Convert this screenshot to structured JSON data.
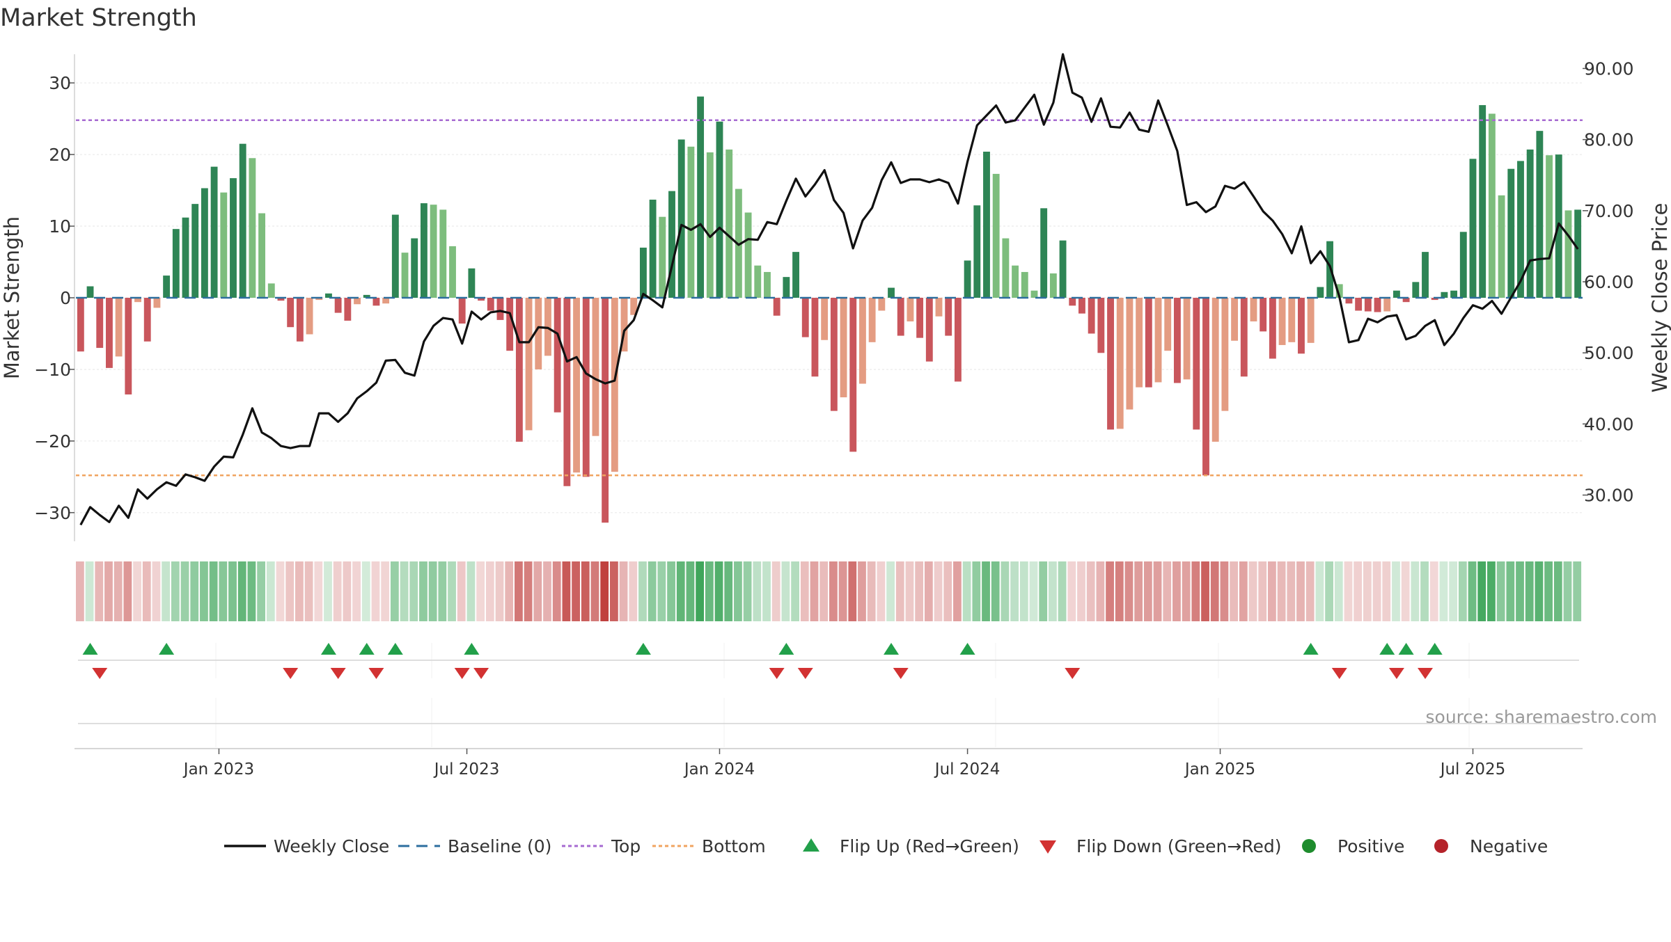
{
  "chart_data": {
    "type": "bar",
    "title": "Market Strength",
    "ylabel_left": "Market Strength",
    "ylabel_right": "Weekly Close Price",
    "source": "source: sharemaestro.com",
    "left_axis": {
      "range": [
        -34,
        34
      ],
      "ticks": [
        30,
        20,
        10,
        0,
        -10,
        -20,
        -30
      ],
      "tick_labels": [
        "30",
        "20",
        "10",
        "0",
        "−10",
        "−20",
        "−30"
      ]
    },
    "right_axis": {
      "range": [
        23.5,
        92
      ],
      "ticks": [
        90,
        80,
        70,
        60,
        50,
        40,
        30
      ],
      "tick_labels": [
        "90.00",
        "80.00",
        "70.00",
        "60.00",
        "50.00",
        "40.00",
        "30.00"
      ]
    },
    "x_axis": {
      "ticks": [
        15.0,
        41.0,
        67.5,
        93.5,
        120.0,
        146.5
      ],
      "tick_labels": [
        "Jan 2023",
        "Jul 2023",
        "Jan 2024",
        "Jul 2024",
        "Jan 2025",
        "Jul 2025"
      ]
    },
    "top_level": 24.8,
    "bottom_level": -24.8,
    "market_strength": [
      -7.5,
      1.6,
      -7,
      -9.8,
      -8.2,
      -13.5,
      -0.6,
      -6.1,
      -1.4,
      3.1,
      9.6,
      11.2,
      13.1,
      15.3,
      18.3,
      14.7,
      16.7,
      21.5,
      19.5,
      11.8,
      2.0,
      -0.4,
      -4.1,
      -6.1,
      -5.1,
      -0.3,
      0.6,
      -2.1,
      -3.2,
      -0.9,
      0.4,
      -1.1,
      -0.8,
      11.6,
      6.3,
      8.3,
      13.2,
      13.0,
      12.3,
      7.2,
      -3.6,
      4.1,
      -0.4,
      -1.8,
      -3.1,
      -7.4,
      -20.1,
      -18.5,
      -10.0,
      -8.1,
      -16.0,
      -26.3,
      -24.4,
      -25.0,
      -19.3,
      -31.4,
      -24.3,
      -7.5,
      -2.4,
      7.0,
      13.7,
      11.3,
      14.9,
      22.1,
      21.1,
      28.1,
      20.3,
      24.6,
      20.7,
      15.2,
      11.9,
      4.5,
      3.6,
      -2.5,
      2.9,
      6.4,
      -5.5,
      -11.0,
      -5.9,
      -15.8,
      -13.9,
      -21.5,
      -12.0,
      -6.2,
      -1.8,
      1.4,
      -5.3,
      -3.3,
      -5.6,
      -8.9,
      -2.6,
      -5.3,
      -11.7,
      5.2,
      12.9,
      20.4,
      17.3,
      8.3,
      4.5,
      3.6,
      1.0,
      12.5,
      3.4,
      8.0,
      -1.1,
      -2.2,
      -5.0,
      -7.7,
      -18.4,
      -18.3,
      -15.6,
      -12.5,
      -12.5,
      -11.8,
      -7.4,
      -11.9,
      -11.4,
      -18.4,
      -24.8,
      -20.1,
      -15.8,
      -6.0,
      -11.0,
      -3.3,
      -4.7,
      -8.5,
      -6.6,
      -6.2,
      -7.8,
      -6.3,
      1.5,
      7.9,
      1.9,
      -0.8,
      -1.8,
      -1.9,
      -2.0,
      -1.9,
      1.0,
      -0.6,
      2.2,
      6.4,
      -0.3,
      0.8,
      1.0,
      9.2,
      19.4,
      26.9,
      25.7,
      14.3,
      18.0,
      19.1,
      20.7,
      23.3,
      19.9,
      20.0,
      12.2,
      12.3
    ],
    "weekly_close": [
      25.8,
      28.3,
      27.2,
      26.2,
      28.5,
      26.8,
      30.8,
      29.5,
      30.8,
      31.8,
      31.3,
      32.9,
      32.5,
      32.0,
      34.0,
      35.4,
      35.3,
      38.5,
      42.2,
      38.8,
      38.0,
      36.9,
      36.6,
      36.9,
      36.9,
      41.5,
      41.5,
      40.3,
      41.5,
      43.6,
      44.6,
      45.8,
      48.9,
      49.0,
      47.2,
      46.8,
      51.6,
      53.8,
      54.9,
      54.7,
      51.3,
      55.8,
      54.7,
      55.7,
      55.9,
      55.6,
      51.5,
      51.5,
      53.6,
      53.5,
      52.7,
      48.8,
      49.4,
      47.1,
      46.3,
      45.7,
      46.1,
      53.1,
      54.6,
      58.3,
      57.4,
      56.4,
      62.2,
      68.0,
      67.3,
      68.1,
      66.3,
      67.6,
      66.4,
      65.2,
      66.0,
      65.9,
      68.4,
      68.1,
      71.4,
      74.5,
      72.0,
      73.7,
      75.7,
      71.5,
      69.7,
      64.7,
      68.6,
      70.4,
      74.3,
      76.8,
      73.9,
      74.4,
      74.4,
      74.0,
      74.4,
      73.9,
      71.0,
      76.9,
      82.0,
      83.4,
      84.8,
      82.4,
      82.7,
      84.5,
      86.3,
      82.1,
      85.2,
      92.0,
      86.6,
      85.9,
      82.5,
      85.8,
      81.8,
      81.7,
      83.8,
      81.4,
      81.1,
      85.5,
      82.0,
      78.4,
      70.8,
      71.2,
      69.8,
      70.6,
      73.5,
      73.1,
      74.0,
      72.0,
      69.9,
      68.6,
      66.7,
      64.0,
      67.8,
      62.6,
      64.3,
      62.2,
      57.9,
      51.5,
      51.8,
      54.8,
      54.3,
      55.1,
      55.3,
      51.9,
      52.4,
      53.8,
      54.6,
      51.1,
      52.7,
      54.9,
      56.7,
      56.2,
      57.3,
      55.5,
      57.8,
      60.1,
      63.0,
      63.2,
      63.3,
      68.2,
      66.5,
      64.6
    ],
    "flip_up": [
      1,
      9,
      26,
      30,
      33,
      41,
      59,
      74,
      85,
      93,
      129,
      137,
      139,
      142
    ],
    "flip_down": [
      2,
      22,
      27,
      31,
      40,
      42,
      73,
      76,
      86,
      104,
      132,
      138,
      141
    ],
    "colors": {
      "green_dark": "#2e8555",
      "green_light": "#7dbd7d",
      "red_dark": "#c9565c",
      "red_light": "#e49c82",
      "line": "#111111",
      "top_line": "#a66ad1",
      "bottom_line": "#f0a460",
      "baseline": "#2c6e9e",
      "flip_up": "#22a04a",
      "flip_down": "#d23232",
      "positive": "#1e8c2d",
      "negative": "#b5232a"
    },
    "legend": [
      {
        "label": "Weekly Close",
        "kind": "line",
        "color": "#111111"
      },
      {
        "label": "Baseline (0)",
        "kind": "dash",
        "color": "#2c6e9e"
      },
      {
        "label": "Top",
        "kind": "dot",
        "color": "#a66ad1"
      },
      {
        "label": "Bottom",
        "kind": "dot",
        "color": "#f0a460"
      },
      {
        "label": "Flip Up (Red→Green)",
        "kind": "tri-up",
        "color": "#22a04a"
      },
      {
        "label": "Flip Down (Green→Red)",
        "kind": "tri-down",
        "color": "#d23232"
      },
      {
        "label": "Positive",
        "kind": "circle",
        "color": "#1e8c2d"
      },
      {
        "label": "Negative",
        "kind": "circle",
        "color": "#b5232a"
      }
    ]
  }
}
